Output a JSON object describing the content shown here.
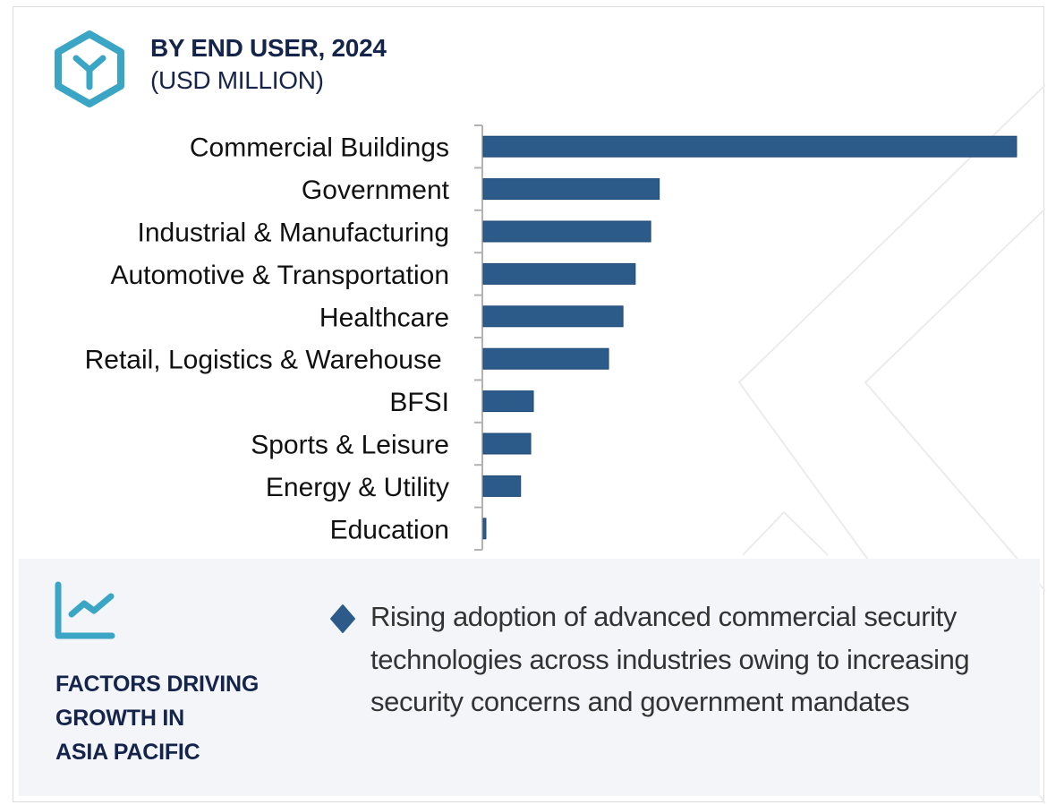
{
  "header": {
    "title": "BY END USER, 2024",
    "subtitle": "(USD MILLION)",
    "icon": "hexagon-y-icon"
  },
  "colors": {
    "bar": "#2c5b8a",
    "bar_edge": "#1f4a75",
    "accent_teal": "#3aa5c4",
    "title_navy": "#14244b",
    "panel_bg": "#f3f5f9",
    "axis": "#b3b3b3",
    "watermark": "#ececec"
  },
  "chart_data": {
    "type": "bar",
    "orientation": "horizontal",
    "title": "BY END USER, 2024",
    "subtitle": "(USD MILLION)",
    "xlabel": "",
    "ylabel": "",
    "value_unit": "relative to largest bar (no axis ticks shown; estimated from bar lengths)",
    "categories": [
      "Commercial Buildings",
      "Government",
      "Industrial & Manufacturing",
      "Automotive & Transportation",
      "Healthcare",
      "Retail, Logistics & Warehouse ",
      "BFSI",
      "Sports & Leisure",
      "Energy & Utility",
      "Education"
    ],
    "values": [
      100,
      33,
      31.4,
      28.5,
      26.2,
      23.5,
      9.4,
      8.9,
      7.0,
      0.5
    ],
    "xlim": [
      0,
      100
    ],
    "grid": false,
    "legend": "none",
    "data_labels": false
  },
  "panel": {
    "icon": "line-chart-growth-icon",
    "title_lines": [
      "FACTORS DRIVING",
      "GROWTH IN",
      "ASIA PACIFIC"
    ],
    "bullet_icon": "diamond-bullet-icon",
    "bullets": [
      "Rising adoption of advanced commercial security technologies across industries owing to increasing security concerns and government mandates"
    ]
  }
}
